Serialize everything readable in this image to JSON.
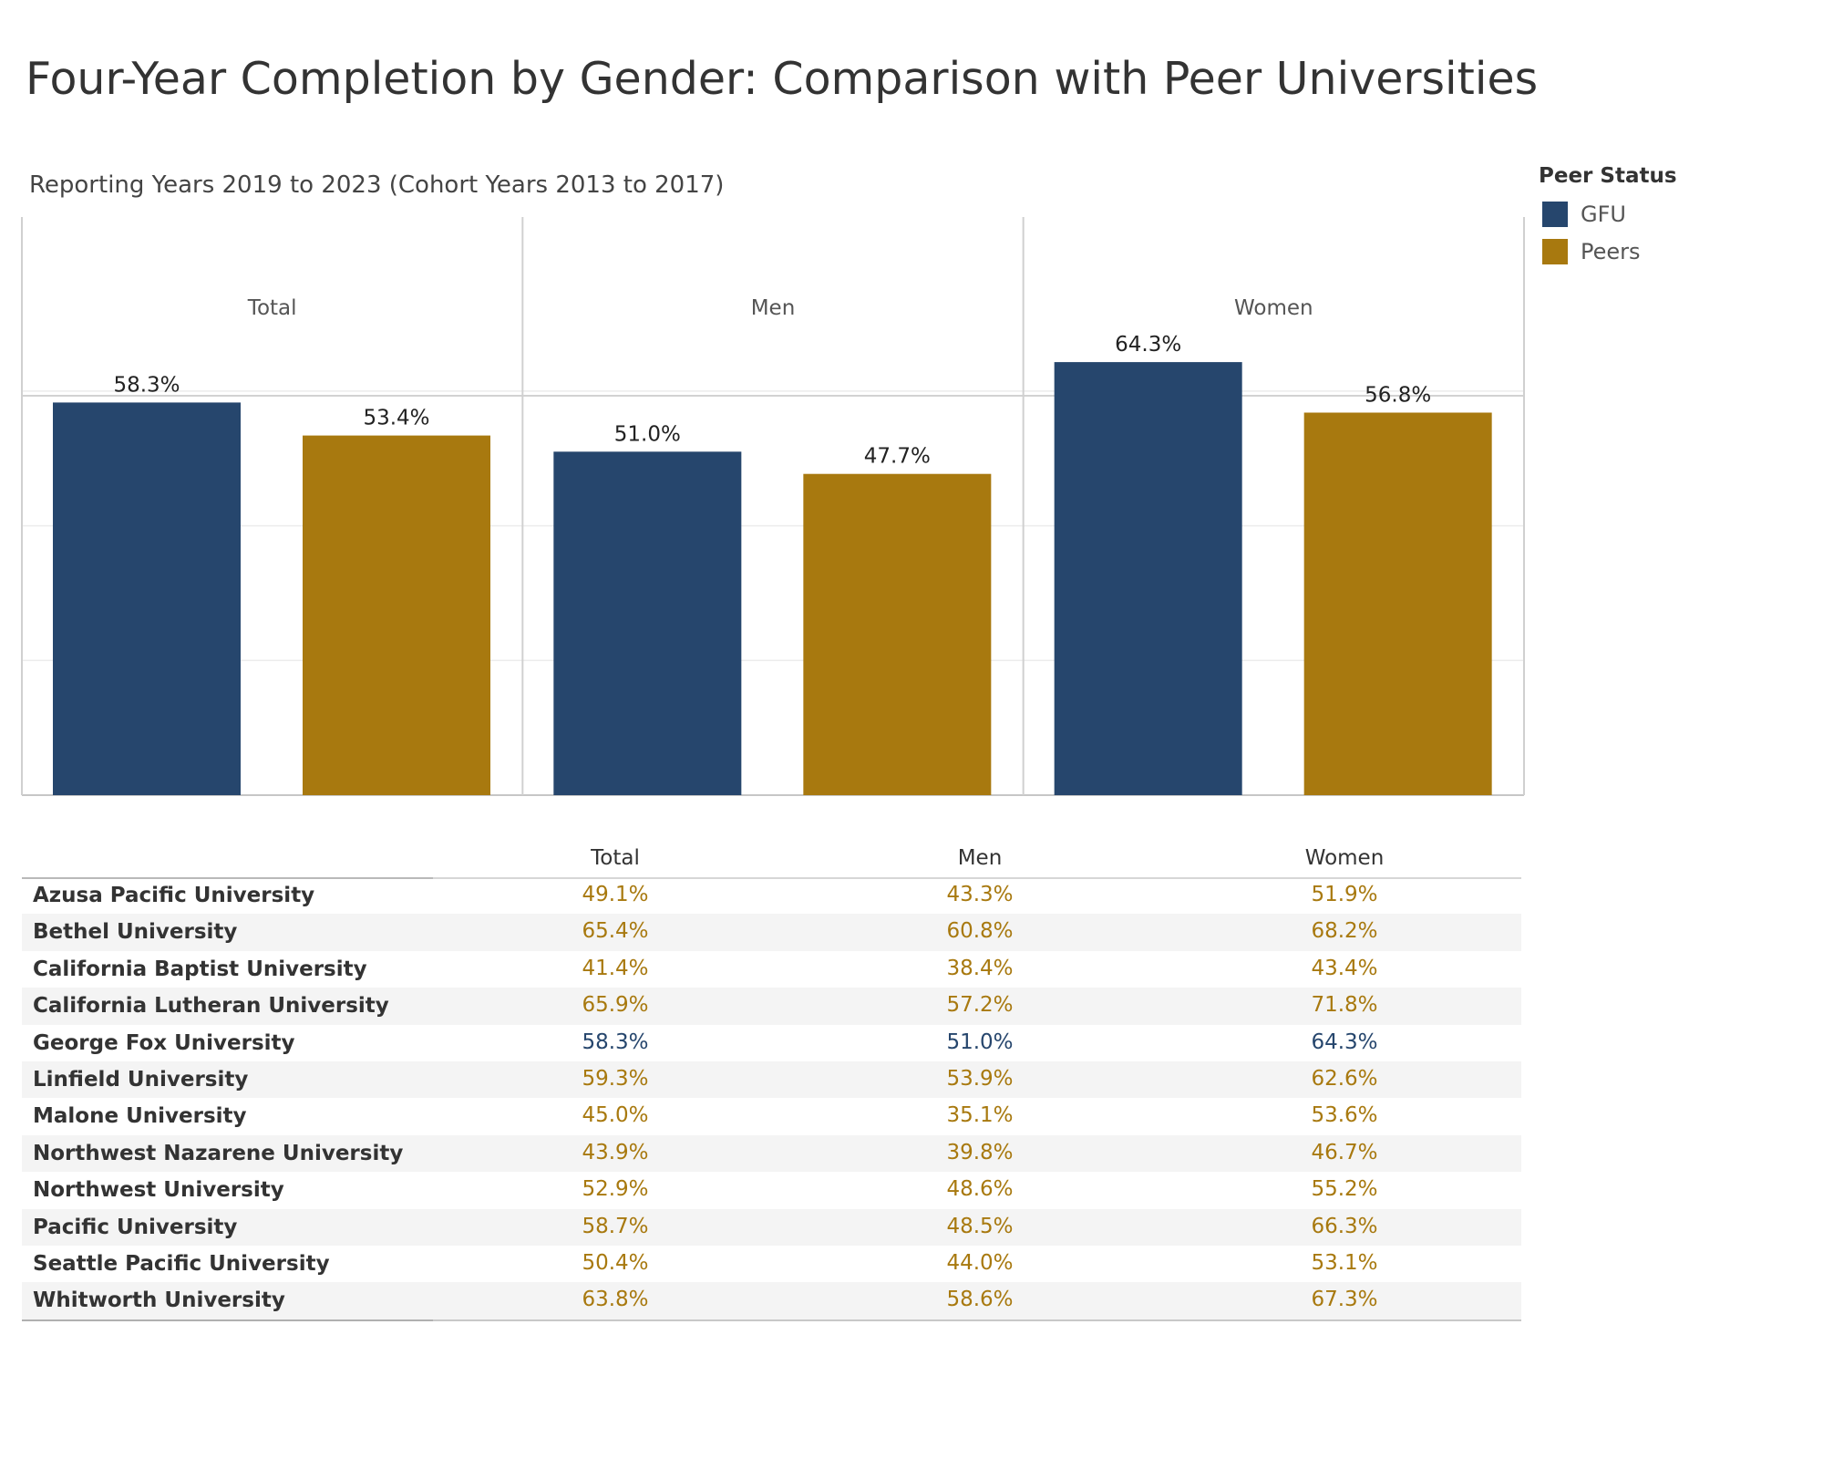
{
  "title": "Four-Year Completion by Gender: Comparison with Peer Universities",
  "subtitle": "Reporting Years 2019 to 2023  (Cohort Years 2013 to 2017)",
  "legend": {
    "title": "Peer Status",
    "items": [
      {
        "label": "GFU",
        "color": "#26466d"
      },
      {
        "label": "Peers",
        "color": "#a8790f"
      }
    ]
  },
  "chart_data": {
    "type": "bar",
    "title": "Four-Year Completion by Gender: Comparison with Peer Universities",
    "panels": [
      "Total",
      "Men",
      "Women"
    ],
    "series": [
      {
        "name": "GFU",
        "color": "#26466d",
        "values": [
          58.3,
          51.0,
          64.3
        ],
        "labels": [
          "58.3%",
          "51.0%",
          "64.3%"
        ]
      },
      {
        "name": "Peers",
        "color": "#a8790f",
        "values": [
          53.4,
          47.7,
          56.8
        ],
        "labels": [
          "53.4%",
          "47.7%",
          "56.8%"
        ]
      }
    ],
    "ylim": [
      0,
      70
    ],
    "gridlines": [
      20,
      40,
      60
    ],
    "xlabel": "",
    "ylabel": ""
  },
  "table": {
    "columns": [
      "Total",
      "Men",
      "Women"
    ],
    "rows": [
      {
        "name": "Azusa Pacific University",
        "values": [
          "49.1%",
          "43.3%",
          "51.9%"
        ],
        "gfu": false
      },
      {
        "name": "Bethel University",
        "values": [
          "65.4%",
          "60.8%",
          "68.2%"
        ],
        "gfu": false
      },
      {
        "name": "California Baptist University",
        "values": [
          "41.4%",
          "38.4%",
          "43.4%"
        ],
        "gfu": false
      },
      {
        "name": "California Lutheran University",
        "values": [
          "65.9%",
          "57.2%",
          "71.8%"
        ],
        "gfu": false
      },
      {
        "name": "George Fox University",
        "values": [
          "58.3%",
          "51.0%",
          "64.3%"
        ],
        "gfu": true
      },
      {
        "name": "Linfield University",
        "values": [
          "59.3%",
          "53.9%",
          "62.6%"
        ],
        "gfu": false
      },
      {
        "name": "Malone University",
        "values": [
          "45.0%",
          "35.1%",
          "53.6%"
        ],
        "gfu": false
      },
      {
        "name": "Northwest Nazarene University",
        "values": [
          "43.9%",
          "39.8%",
          "46.7%"
        ],
        "gfu": false
      },
      {
        "name": "Northwest University",
        "values": [
          "52.9%",
          "48.6%",
          "55.2%"
        ],
        "gfu": false
      },
      {
        "name": "Pacific University",
        "values": [
          "58.7%",
          "48.5%",
          "66.3%"
        ],
        "gfu": false
      },
      {
        "name": "Seattle Pacific University",
        "values": [
          "50.4%",
          "44.0%",
          "53.1%"
        ],
        "gfu": false
      },
      {
        "name": "Whitworth University",
        "values": [
          "63.8%",
          "58.6%",
          "67.3%"
        ],
        "gfu": false
      }
    ]
  }
}
